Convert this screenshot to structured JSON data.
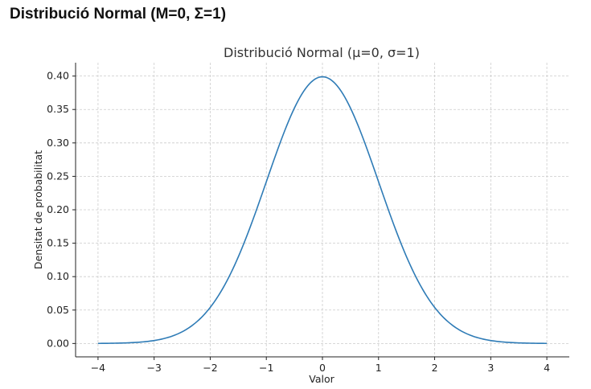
{
  "page": {
    "heading": "Distribució Normal (M=0, Σ=1)"
  },
  "chart_data": {
    "type": "line",
    "title": "Distribució Normal (μ=0, σ=1)",
    "xlabel": "Valor",
    "ylabel": "Densitat de probabilitat",
    "xlim": [
      -4.4,
      4.4
    ],
    "ylim": [
      -0.02,
      0.42
    ],
    "x_ticks": [
      -4,
      -3,
      -2,
      -1,
      0,
      1,
      2,
      3,
      4
    ],
    "x_tick_labels": [
      "−4",
      "−3",
      "−2",
      "−1",
      "0",
      "1",
      "2",
      "3",
      "4"
    ],
    "y_ticks": [
      0,
      0.05,
      0.1,
      0.15,
      0.2,
      0.25,
      0.3,
      0.35,
      0.4
    ],
    "y_tick_labels": [
      "0.00",
      "0.05",
      "0.10",
      "0.15",
      "0.20",
      "0.25",
      "0.30",
      "0.35",
      "0.40"
    ],
    "grid": true,
    "series": [
      {
        "color": "#2e7bb6",
        "x": [
          -4,
          -3.5,
          -3,
          -2.5,
          -2,
          -1.75,
          -1.5,
          -1.25,
          -1,
          -0.75,
          -0.5,
          -0.25,
          0,
          0.25,
          0.5,
          0.75,
          1,
          1.25,
          1.5,
          1.75,
          2,
          2.5,
          3,
          3.5,
          4
        ],
        "values": [
          0.0001,
          0.0009,
          0.0044,
          0.0175,
          0.054,
          0.0863,
          0.1295,
          0.1826,
          0.242,
          0.3011,
          0.3521,
          0.3867,
          0.3989,
          0.3867,
          0.3521,
          0.3011,
          0.242,
          0.1826,
          0.1295,
          0.0863,
          0.054,
          0.0175,
          0.0044,
          0.0009,
          0.0001
        ]
      }
    ]
  }
}
